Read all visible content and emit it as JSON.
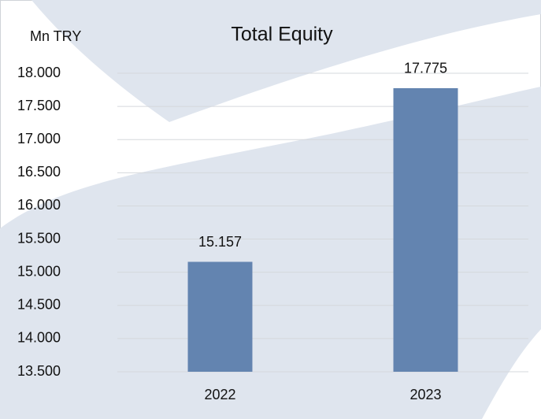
{
  "chart_data": {
    "type": "bar",
    "title": "Total Equity",
    "y_label": "Mn TRY",
    "categories": [
      "2022",
      "2023"
    ],
    "values": [
      15157,
      17775
    ],
    "value_labels": [
      "15.157",
      "17.775"
    ],
    "color": "#6384b0",
    "ylim": [
      13500,
      18000
    ],
    "yticks": [
      {
        "value": 13500,
        "label": "13.500"
      },
      {
        "value": 14000,
        "label": "14.000"
      },
      {
        "value": 14500,
        "label": "14.500"
      },
      {
        "value": 15000,
        "label": "15.000"
      },
      {
        "value": 15500,
        "label": "15.500"
      },
      {
        "value": 16000,
        "label": "16.000"
      },
      {
        "value": 16500,
        "label": "16.500"
      },
      {
        "value": 17000,
        "label": "17.000"
      },
      {
        "value": 17500,
        "label": "17.500"
      },
      {
        "value": 18000,
        "label": "18.000"
      }
    ],
    "grid": true
  }
}
